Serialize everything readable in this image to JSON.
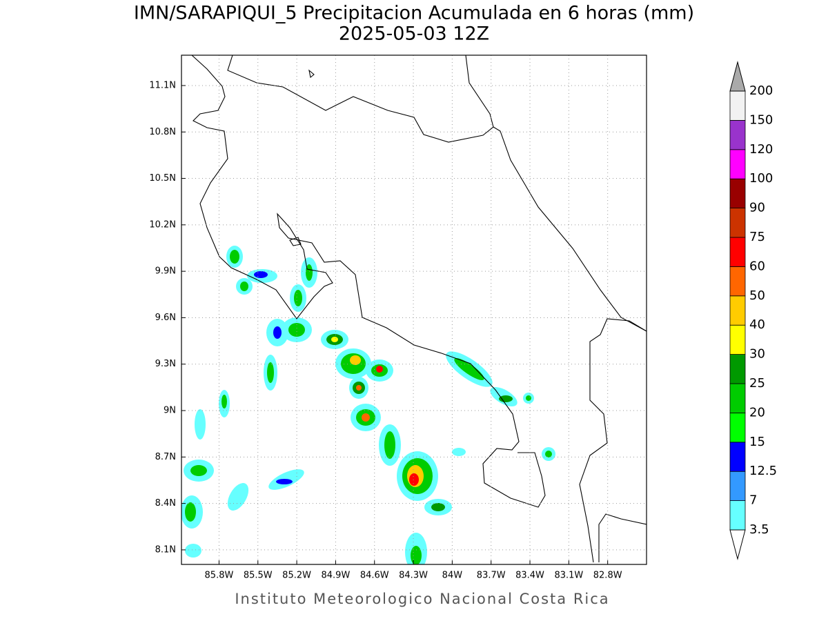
{
  "map": {
    "title": "IMN/SARAPIQUI_5 Precipitacion Acumulada en 6 horas (mm)",
    "subtitle": "2025-05-03 12Z",
    "footer": "Instituto Meteorologico Nacional Costa Rica",
    "lonlim": [
      -86.09,
      -82.5
    ],
    "latlim": [
      8.006,
      11.296
    ],
    "lon_ticks": [
      {
        "value": -85.8,
        "label": "85.8W"
      },
      {
        "value": -85.5,
        "label": "85.5W"
      },
      {
        "value": -85.2,
        "label": "85.2W"
      },
      {
        "value": -84.9,
        "label": "84.9W"
      },
      {
        "value": -84.6,
        "label": "84.6W"
      },
      {
        "value": -84.3,
        "label": "84.3W"
      },
      {
        "value": -84.0,
        "label": "84W"
      },
      {
        "value": -83.7,
        "label": "83.7W"
      },
      {
        "value": -83.4,
        "label": "83.4W"
      },
      {
        "value": -83.1,
        "label": "83.1W"
      },
      {
        "value": -82.8,
        "label": "82.8W"
      }
    ],
    "lat_ticks": [
      {
        "value": 8.1,
        "label": "8.1N"
      },
      {
        "value": 8.4,
        "label": "8.4N"
      },
      {
        "value": 8.7,
        "label": "8.7N"
      },
      {
        "value": 9.0,
        "label": "9N"
      },
      {
        "value": 9.3,
        "label": "9.3N"
      },
      {
        "value": 9.6,
        "label": "9.6N"
      },
      {
        "value": 9.9,
        "label": "9.9N"
      },
      {
        "value": 10.2,
        "label": "10.2N"
      },
      {
        "value": 10.5,
        "label": "10.5N"
      },
      {
        "value": 10.8,
        "label": "10.8N"
      },
      {
        "value": 11.1,
        "label": "11.1N"
      }
    ],
    "grid": true,
    "colorbar": {
      "levels": [
        3.5,
        7,
        12.5,
        15,
        20,
        25,
        30,
        40,
        50,
        60,
        75,
        90,
        100,
        120,
        150,
        200
      ],
      "colors": [
        "#66ffff",
        "#3399ff",
        "#0000ff",
        "#00ff00",
        "#00cc00",
        "#009900",
        "#ffff00",
        "#ffcc00",
        "#ff6600",
        "#ff0000",
        "#cc3300",
        "#990000",
        "#ff00ff",
        "#9933cc",
        "#f2f2f2"
      ],
      "under_color": "#ffffff",
      "over_color": "#aaaaaa"
    }
  }
}
